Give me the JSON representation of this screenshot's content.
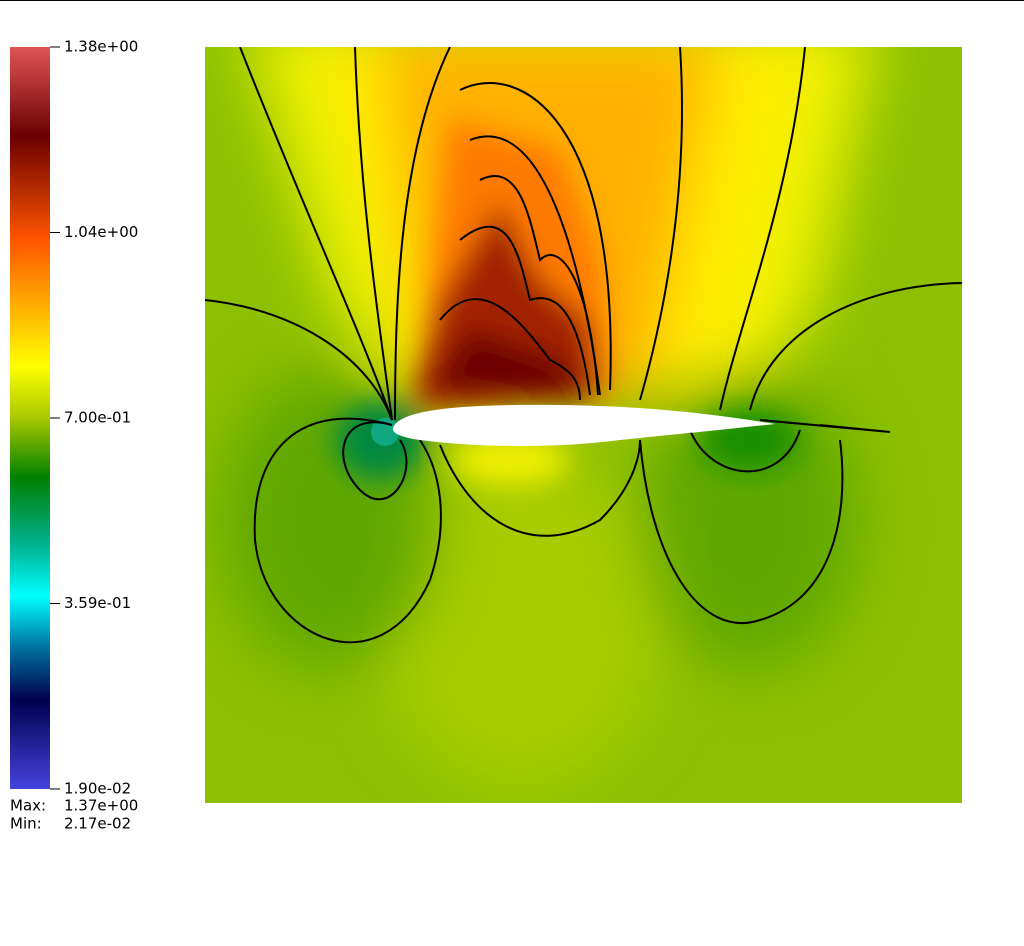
{
  "colorbar": {
    "ticks": [
      "1.38e+00",
      "1.04e+00",
      "7.00e-01",
      "3.59e-01",
      "1.90e-02"
    ]
  },
  "stats": {
    "max": {
      "label": "Max:",
      "value": "1.37e+00"
    },
    "min": {
      "label": "Min:",
      "value": "2.17e-02"
    }
  }
}
